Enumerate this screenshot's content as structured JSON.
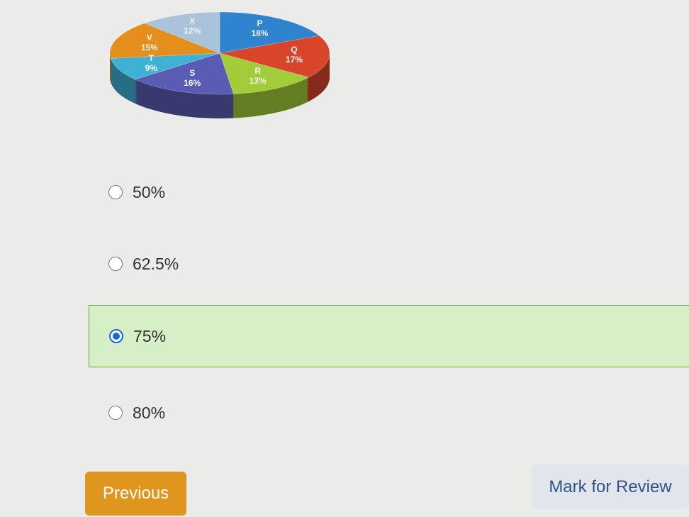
{
  "chart_data": {
    "type": "pie",
    "categories": [
      "P",
      "Q",
      "R",
      "S",
      "T",
      "V",
      "X"
    ],
    "values": [
      18,
      17,
      13,
      16,
      9,
      15,
      12
    ],
    "value_labels": [
      "18%",
      "17%",
      "13%",
      "16%",
      "9%",
      "15%",
      "12%"
    ],
    "colors": [
      "#2f84cf",
      "#d8452b",
      "#a2cc38",
      "#5a5cb3",
      "#3fb2d3",
      "#e48e1e",
      "#a9c3da"
    ]
  },
  "options": [
    "50%",
    "62.5%",
    "75%",
    "80%"
  ],
  "selected": 2,
  "buttons": {
    "previous": "Previous",
    "review": "Mark for Review"
  }
}
